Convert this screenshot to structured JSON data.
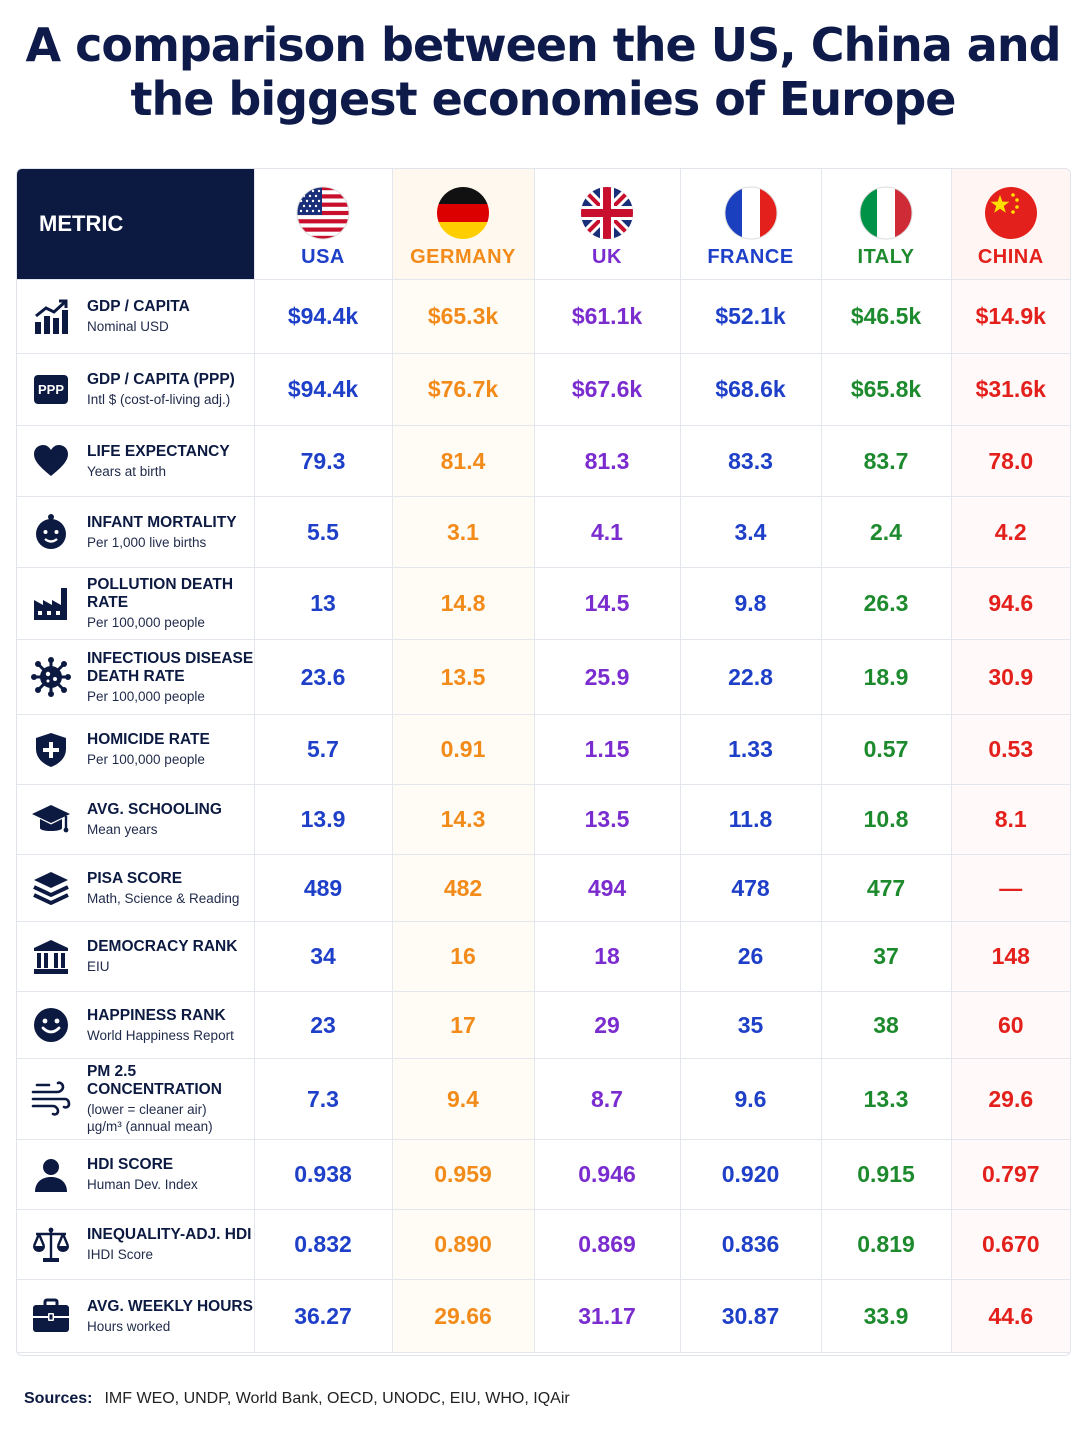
{
  "title_line1": "A comparison between the US, China and",
  "title_line2": "the biggest economies of Europe",
  "metric_header": "METRIC",
  "chart_data": {
    "type": "table",
    "columns": [
      "USA",
      "GERMANY",
      "UK",
      "FRANCE",
      "ITALY",
      "CHINA"
    ],
    "rows": [
      {
        "metric": "GDP / CAPITA",
        "sub": "Nominal USD",
        "icon": "chart-growth-icon",
        "values": [
          "$94.4k",
          "$65.3k",
          "$61.1k",
          "$52.1k",
          "$46.5k",
          "$14.9k"
        ]
      },
      {
        "metric": "GDP / CAPITA (PPP)",
        "sub": "Intl $ (cost-of-living adj.)",
        "icon": "ppp-badge-icon",
        "icon_text": "PPP",
        "values": [
          "$94.4k",
          "$76.7k",
          "$67.6k",
          "$68.6k",
          "$65.8k",
          "$31.6k"
        ]
      },
      {
        "metric": "LIFE EXPECTANCY",
        "sub": "Years at birth",
        "icon": "heart-icon",
        "values": [
          "79.3",
          "81.4",
          "81.3",
          "83.3",
          "83.7",
          "78.0"
        ]
      },
      {
        "metric": "INFANT MORTALITY",
        "sub": "Per 1,000 live births",
        "icon": "baby-icon",
        "values": [
          "5.5",
          "3.1",
          "4.1",
          "3.4",
          "2.4",
          "4.2"
        ]
      },
      {
        "metric": "POLLUTION DEATH RATE",
        "sub": "Per 100,000 people",
        "icon": "factory-icon",
        "values": [
          "13",
          "14.8",
          "14.5",
          "9.8",
          "26.3",
          "94.6"
        ]
      },
      {
        "metric": "INFECTIOUS DISEASE DEATH RATE",
        "metric_line1": "INFECTIOUS DISEASE",
        "metric_line2": "DEATH RATE",
        "sub": "Per 100,000 people",
        "icon": "virus-icon",
        "values": [
          "23.6",
          "13.5",
          "25.9",
          "22.8",
          "18.9",
          "30.9"
        ]
      },
      {
        "metric": "HOMICIDE RATE",
        "sub": "Per 100,000 people",
        "icon": "shield-cross-icon",
        "values": [
          "5.7",
          "0.91",
          "1.15",
          "1.33",
          "0.57",
          "0.53"
        ]
      },
      {
        "metric": "AVG. SCHOOLING",
        "sub": "Mean years",
        "icon": "graduation-cap-icon",
        "values": [
          "13.9",
          "14.3",
          "13.5",
          "11.8",
          "10.8",
          "8.1"
        ]
      },
      {
        "metric": "PISA SCORE",
        "sub": "Math, Science & Reading",
        "icon": "layers-icon",
        "values": [
          "489",
          "482",
          "494",
          "478",
          "477",
          "—"
        ]
      },
      {
        "metric": "DEMOCRACY RANK",
        "sub": "EIU",
        "icon": "government-building-icon",
        "values": [
          "34",
          "16",
          "18",
          "26",
          "37",
          "148"
        ]
      },
      {
        "metric": "HAPPINESS RANK",
        "sub": "World Happiness Report",
        "icon": "smiley-icon",
        "values": [
          "23",
          "17",
          "29",
          "35",
          "38",
          "60"
        ]
      },
      {
        "metric": "PM 2.5 CONCENTRATION",
        "sub": "(lower = cleaner air)",
        "sub2": "µg/m³ (annual mean)",
        "icon": "wind-icon",
        "values": [
          "7.3",
          "9.4",
          "8.7",
          "9.6",
          "13.3",
          "29.6"
        ]
      },
      {
        "metric": "HDI SCORE",
        "sub": "Human Dev. Index",
        "icon": "person-icon",
        "values": [
          "0.938",
          "0.959",
          "0.946",
          "0.920",
          "0.915",
          "0.797"
        ]
      },
      {
        "metric": "INEQUALITY-ADJ. HDI",
        "sub": "IHDI Score",
        "icon": "scales-icon",
        "values": [
          "0.832",
          "0.890",
          "0.869",
          "0.836",
          "0.819",
          "0.670"
        ]
      },
      {
        "metric": "AVG. WEEKLY HOURS",
        "sub": "Hours worked",
        "icon": "briefcase-icon",
        "values": [
          "36.27",
          "29.66",
          "31.17",
          "30.87",
          "33.9",
          "44.6"
        ]
      }
    ]
  },
  "colors": {
    "navy": "#0c1a42",
    "usa": "#1e3fc8",
    "germany": "#f28b1a",
    "uk": "#7a2ccf",
    "france": "#1e3fc8",
    "italy": "#1e8a2e",
    "china": "#e3201b"
  },
  "flags": [
    "usa-flag-icon",
    "germany-flag-icon",
    "uk-flag-icon",
    "france-flag-icon",
    "italy-flag-icon",
    "china-flag-icon"
  ],
  "sources_label": "Sources:",
  "sources_text": "IMF WEO, UNDP, World Bank, OECD, UNODC, EIU, WHO, IQAir"
}
